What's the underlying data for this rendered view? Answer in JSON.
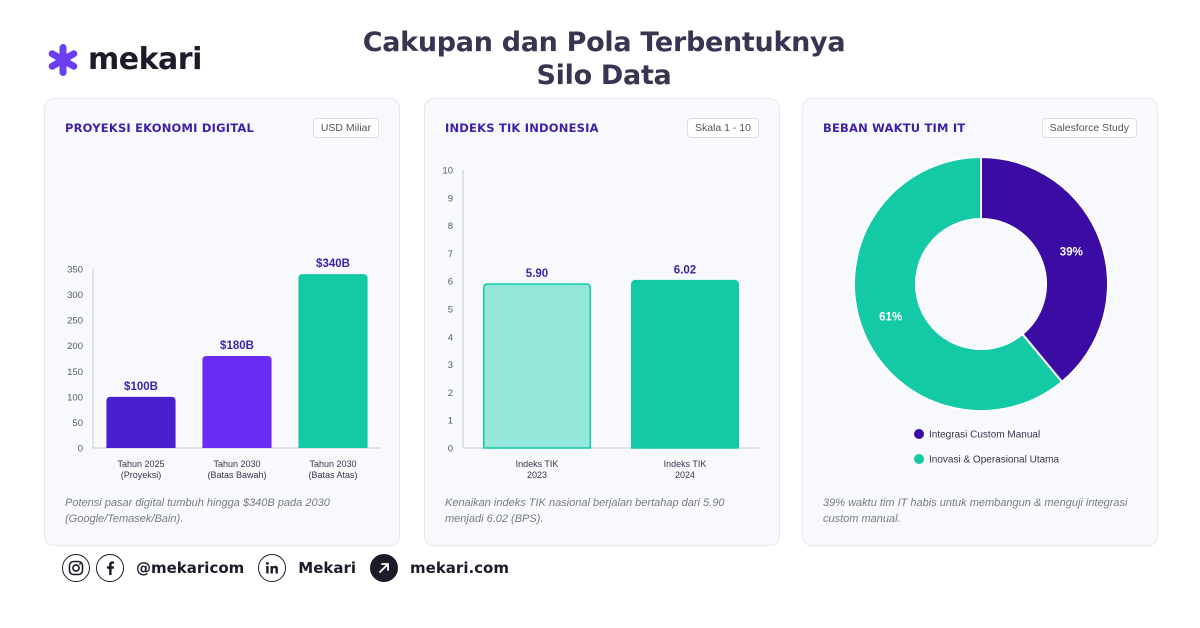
{
  "brand": {
    "name": "mekari",
    "accent": "#6b3ef0"
  },
  "title_line1": "Cakupan dan Pola Terbentuknya",
  "title_line2": "Silo Data",
  "cards": [
    {
      "title": "PROYEKSI EKONOMI DIGITAL",
      "badge": "USD Miliar",
      "caption": "Potensi pasar digital tumbuh hingga $340B pada 2030 (Google/Temasek/Bain)."
    },
    {
      "title": "INDEKS TIK INDONESIA",
      "badge": "Skala 1 - 10",
      "caption": "Kenaikan indeks TIK nasional berjalan bertahap dari 5.90 menjadi 6.02 (BPS)."
    },
    {
      "title": "BEBAN WAKTU TIM IT",
      "badge": "Salesforce Study",
      "caption": "39% waktu tim IT habis untuk membangun & menguji integrasi custom manual."
    }
  ],
  "chart_data": [
    {
      "type": "bar",
      "categories": [
        [
          "Tahun 2025",
          "(Proyeksi)"
        ],
        [
          "Tahun 2030",
          "(Batas Bawah)"
        ],
        [
          "Tahun 2030",
          "(Batas Atas)"
        ]
      ],
      "values": [
        100,
        180,
        340
      ],
      "data_labels": [
        "$100B",
        "$180B",
        "$340B"
      ],
      "colors": [
        "#4a1fcf",
        "#6a2cf5",
        "#13c9a6"
      ],
      "ylim": [
        0,
        350
      ],
      "yticks": [
        0,
        50,
        100,
        150,
        200,
        250,
        300,
        350
      ],
      "grid": false
    },
    {
      "type": "bar",
      "categories": [
        [
          "Indeks TIK",
          "2023"
        ],
        [
          "Indeks TIK",
          "2024"
        ]
      ],
      "values": [
        5.9,
        6.02
      ],
      "data_labels": [
        "5.90",
        "6.02"
      ],
      "colors": [
        "#93e8db",
        "#13c9a6"
      ],
      "ylim": [
        0,
        10
      ],
      "yticks": [
        0,
        1,
        2,
        3,
        4,
        5,
        6,
        7,
        8,
        9,
        10
      ],
      "grid": false
    },
    {
      "type": "pie",
      "donut": true,
      "series": [
        {
          "name": "Integrasi Custom Manual",
          "value": 39,
          "label": "39%",
          "color": "#3a0ca3"
        },
        {
          "name": "Inovasi & Operasional Utama",
          "value": 61,
          "label": "61%",
          "color": "#13c9a6"
        }
      ],
      "legend": "bottom"
    }
  ],
  "footer": {
    "handle": "@mekaricom",
    "linkedin": "Mekari",
    "website": "mekari.com",
    "icons": [
      "instagram-icon",
      "facebook-icon",
      "linkedin-icon",
      "arrow-link-icon"
    ]
  }
}
